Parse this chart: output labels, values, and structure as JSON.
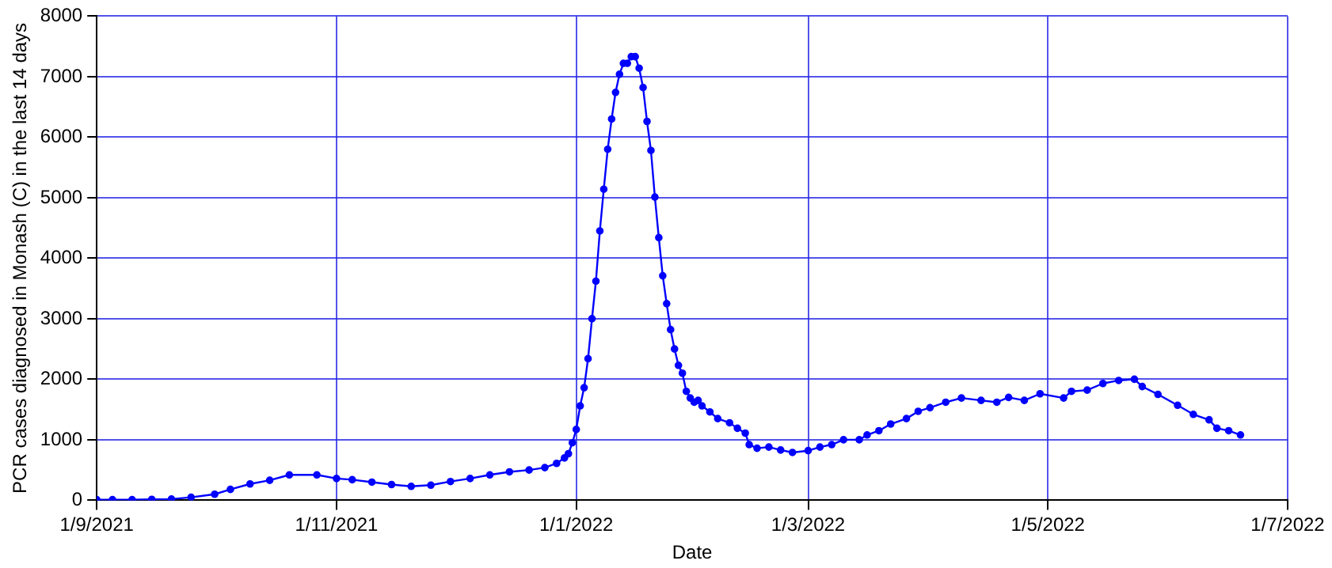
{
  "chart_data": {
    "type": "line",
    "xlabel": "Date",
    "ylabel": "PCR cases diagnosed in Monash (C) in the last 14 days",
    "xlim": [
      "2021-09-01",
      "2022-07-01"
    ],
    "xticks": [
      {
        "value": "2021-09-01",
        "label": "1/9/2021"
      },
      {
        "value": "2021-11-01",
        "label": "1/11/2021"
      },
      {
        "value": "2022-01-01",
        "label": "1/1/2022"
      },
      {
        "value": "2022-03-01",
        "label": "1/3/2022"
      },
      {
        "value": "2022-05-01",
        "label": "1/5/2022"
      },
      {
        "value": "2022-07-01",
        "label": "1/7/2022"
      }
    ],
    "ylim": [
      0,
      8000
    ],
    "yticks": [
      0,
      1000,
      2000,
      3000,
      4000,
      5000,
      6000,
      7000,
      8000
    ],
    "grid": true,
    "legend": false,
    "marker": "circle",
    "line_style": "solid",
    "series": [
      {
        "color": "#0000ff",
        "x": [
          "2021-09-01",
          "2021-09-05",
          "2021-09-10",
          "2021-09-15",
          "2021-09-20",
          "2021-09-25",
          "2021-10-01",
          "2021-10-05",
          "2021-10-10",
          "2021-10-15",
          "2021-10-20",
          "2021-10-27",
          "2021-11-01",
          "2021-11-05",
          "2021-11-10",
          "2021-11-15",
          "2021-11-20",
          "2021-11-25",
          "2021-11-30",
          "2021-12-05",
          "2021-12-10",
          "2021-12-15",
          "2021-12-20",
          "2021-12-24",
          "2021-12-27",
          "2021-12-29",
          "2021-12-30",
          "2021-12-31",
          "2022-01-01",
          "2022-01-02",
          "2022-01-03",
          "2022-01-04",
          "2022-01-05",
          "2022-01-06",
          "2022-01-07",
          "2022-01-08",
          "2022-01-09",
          "2022-01-10",
          "2022-01-11",
          "2022-01-12",
          "2022-01-13",
          "2022-01-14",
          "2022-01-15",
          "2022-01-16",
          "2022-01-17",
          "2022-01-18",
          "2022-01-19",
          "2022-01-20",
          "2022-01-21",
          "2022-01-22",
          "2022-01-23",
          "2022-01-24",
          "2022-01-25",
          "2022-01-26",
          "2022-01-27",
          "2022-01-28",
          "2022-01-29",
          "2022-01-30",
          "2022-01-31",
          "2022-02-01",
          "2022-02-02",
          "2022-02-04",
          "2022-02-06",
          "2022-02-09",
          "2022-02-11",
          "2022-02-13",
          "2022-02-14",
          "2022-02-16",
          "2022-02-19",
          "2022-02-22",
          "2022-02-25",
          "2022-03-01",
          "2022-03-04",
          "2022-03-07",
          "2022-03-10",
          "2022-03-14",
          "2022-03-16",
          "2022-03-19",
          "2022-03-22",
          "2022-03-26",
          "2022-03-29",
          "2022-04-01",
          "2022-04-05",
          "2022-04-09",
          "2022-04-14",
          "2022-04-18",
          "2022-04-21",
          "2022-04-25",
          "2022-04-29",
          "2022-05-05",
          "2022-05-07",
          "2022-05-11",
          "2022-05-15",
          "2022-05-19",
          "2022-05-23",
          "2022-05-25",
          "2022-05-29",
          "2022-06-03",
          "2022-06-07",
          "2022-06-11",
          "2022-06-13",
          "2022-06-16",
          "2022-06-19"
        ],
        "values": [
          10,
          10,
          10,
          15,
          20,
          50,
          100,
          180,
          270,
          330,
          420,
          420,
          360,
          340,
          300,
          260,
          230,
          250,
          310,
          360,
          420,
          470,
          500,
          540,
          610,
          700,
          770,
          950,
          1170,
          1560,
          1860,
          2340,
          3000,
          3620,
          4450,
          5140,
          5800,
          6300,
          6740,
          7040,
          7220,
          7220,
          7330,
          7330,
          7140,
          6820,
          6260,
          5780,
          5010,
          4340,
          3710,
          3250,
          2820,
          2500,
          2230,
          2100,
          1800,
          1690,
          1620,
          1650,
          1560,
          1460,
          1350,
          1280,
          1190,
          1110,
          920,
          860,
          880,
          830,
          790,
          820,
          880,
          920,
          1000,
          1000,
          1080,
          1150,
          1260,
          1350,
          1470,
          1530,
          1620,
          1690,
          1650,
          1620,
          1700,
          1650,
          1760,
          1690,
          1800,
          1820,
          1930,
          1980,
          2000,
          1880,
          1750,
          1570,
          1420,
          1330,
          1190,
          1150,
          1080
        ]
      }
    ]
  }
}
